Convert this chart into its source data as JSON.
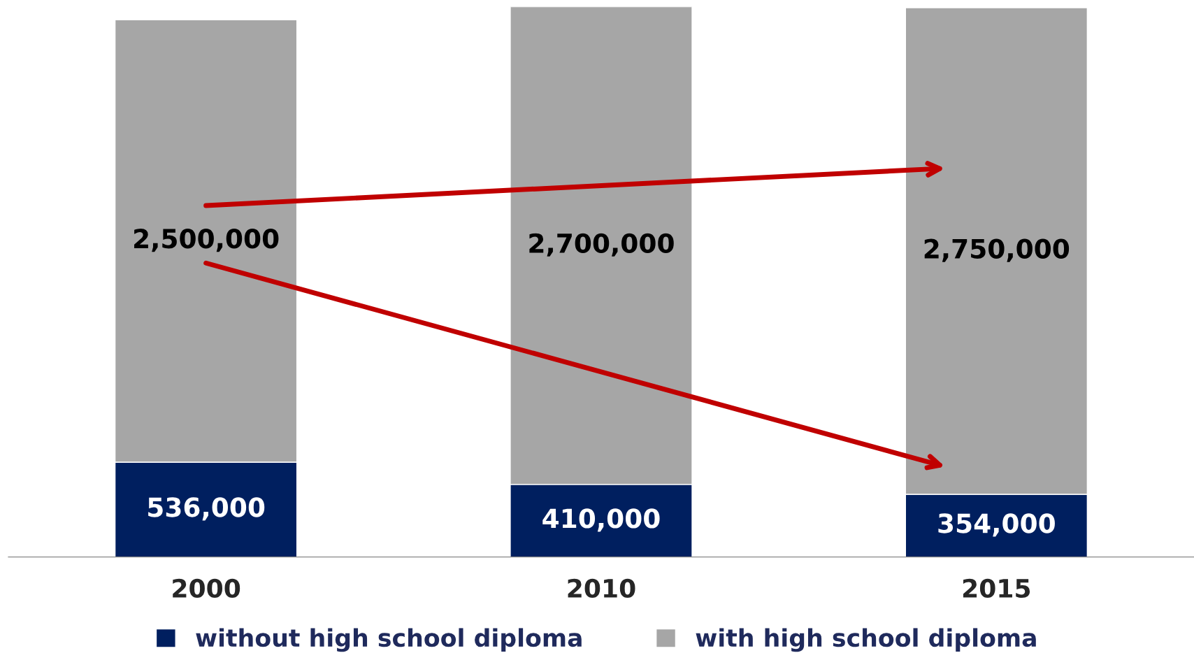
{
  "chart_data": {
    "type": "bar",
    "stacked": true,
    "categories": [
      "2000",
      "2010",
      "2015"
    ],
    "series": [
      {
        "name": "without high school diploma",
        "color": "#001f5f",
        "values": [
          536000,
          410000,
          354000
        ],
        "value_labels": [
          "536,000",
          "410,000",
          "354,000"
        ]
      },
      {
        "name": "with high school diploma",
        "color": "#a6a6a6",
        "values": [
          2500000,
          2700000,
          2750000
        ],
        "value_labels": [
          "2,500,000",
          "2,700,000",
          "2,750,000"
        ]
      }
    ],
    "legend": "bottom"
  }
}
